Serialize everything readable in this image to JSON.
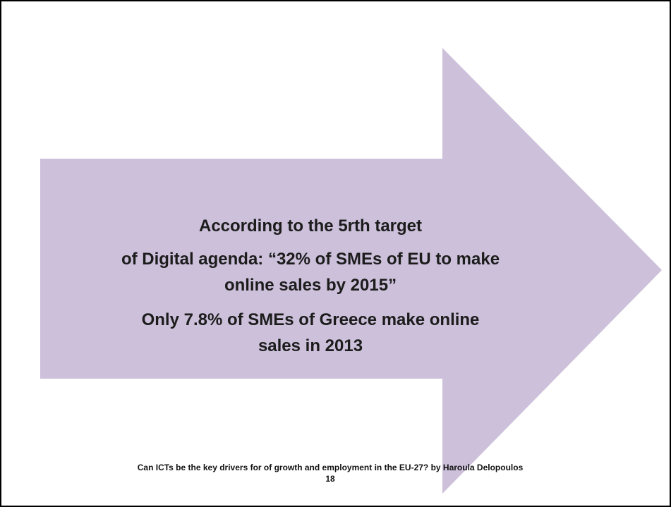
{
  "body": {
    "paragraphs": [
      [
        "According to the 5rth target"
      ],
      [
        "of Digital agenda: “32% of SMEs of EU to make",
        "online sales by 2015”"
      ],
      [
        "Only 7.8% of SMEs of Greece make online",
        "sales in 2013"
      ]
    ]
  },
  "footer": {
    "text": "Can ICTs be the key drivers for of growth and employment in the EU-27? by Haroula Delopoulos",
    "page": "18"
  }
}
